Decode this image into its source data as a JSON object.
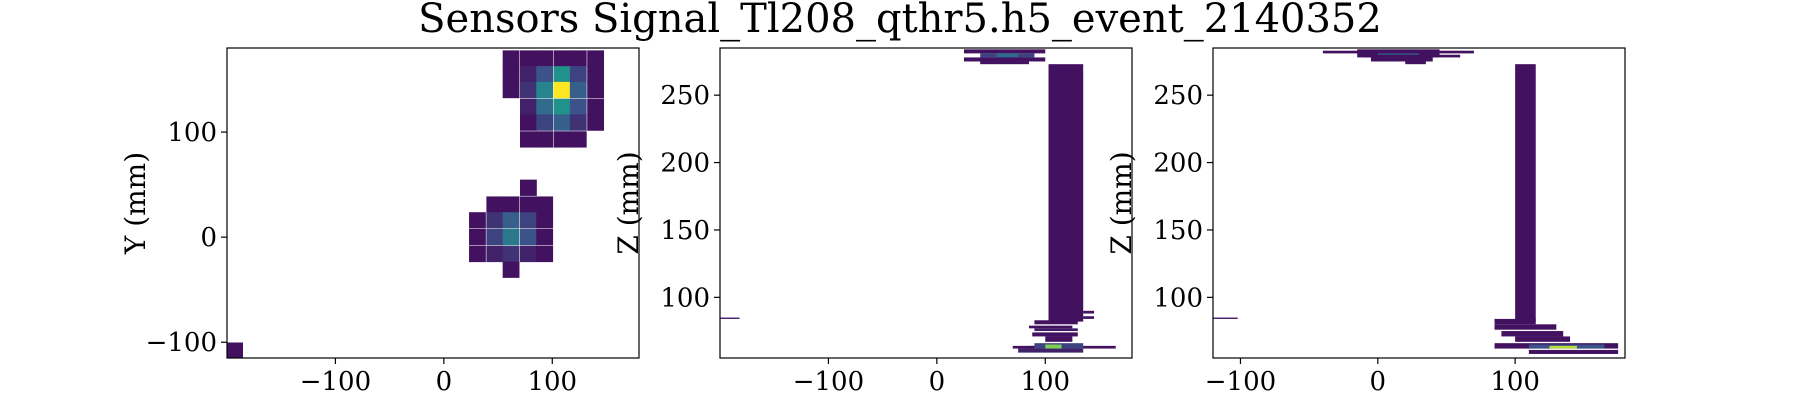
{
  "figure": {
    "suptitle": "Sensors Signal_Tl208_qthr5.h5_event_2140352"
  },
  "colors": {
    "low": "#440154",
    "mid1": "#3b528b",
    "mid2": "#21918c",
    "mid3": "#5ec962",
    "high": "#fde725"
  },
  "chart_data": [
    {
      "type": "heatmap",
      "title": "",
      "xlabel": "",
      "ylabel": "Y (mm)",
      "xlim": [
        -200,
        180
      ],
      "ylim": [
        -115,
        180
      ],
      "xticks": [
        -100,
        0,
        100
      ],
      "yticks": [
        -100,
        0,
        100
      ],
      "xtick_labels": [
        "−100",
        "0",
        "100"
      ],
      "ytick_labels": [
        "−100",
        "0",
        "100"
      ],
      "cell_size": [
        15.5,
        15.5
      ],
      "cells": [
        {
          "x": 62,
          "y": 170,
          "v": 0.05
        },
        {
          "x": 78,
          "y": 170,
          "v": 0.05
        },
        {
          "x": 93,
          "y": 170,
          "v": 0.05
        },
        {
          "x": 109,
          "y": 170,
          "v": 0.05
        },
        {
          "x": 124,
          "y": 170,
          "v": 0.05
        },
        {
          "x": 140,
          "y": 170,
          "v": 0.05
        },
        {
          "x": 62,
          "y": 155,
          "v": 0.05
        },
        {
          "x": 78,
          "y": 155,
          "v": 0.1
        },
        {
          "x": 93,
          "y": 155,
          "v": 0.25
        },
        {
          "x": 109,
          "y": 155,
          "v": 0.5
        },
        {
          "x": 124,
          "y": 155,
          "v": 0.2
        },
        {
          "x": 140,
          "y": 155,
          "v": 0.05
        },
        {
          "x": 62,
          "y": 140,
          "v": 0.05
        },
        {
          "x": 78,
          "y": 140,
          "v": 0.15
        },
        {
          "x": 93,
          "y": 140,
          "v": 0.45
        },
        {
          "x": 109,
          "y": 140,
          "v": 1.0
        },
        {
          "x": 124,
          "y": 140,
          "v": 0.3
        },
        {
          "x": 140,
          "y": 140,
          "v": 0.05
        },
        {
          "x": 78,
          "y": 124,
          "v": 0.1
        },
        {
          "x": 93,
          "y": 124,
          "v": 0.35
        },
        {
          "x": 109,
          "y": 124,
          "v": 0.5
        },
        {
          "x": 124,
          "y": 124,
          "v": 0.25
        },
        {
          "x": 140,
          "y": 124,
          "v": 0.05
        },
        {
          "x": 78,
          "y": 109,
          "v": 0.05
        },
        {
          "x": 93,
          "y": 109,
          "v": 0.2
        },
        {
          "x": 109,
          "y": 109,
          "v": 0.3
        },
        {
          "x": 124,
          "y": 109,
          "v": 0.15
        },
        {
          "x": 140,
          "y": 109,
          "v": 0.05
        },
        {
          "x": 78,
          "y": 93,
          "v": 0.05
        },
        {
          "x": 93,
          "y": 93,
          "v": 0.05
        },
        {
          "x": 109,
          "y": 93,
          "v": 0.05
        },
        {
          "x": 124,
          "y": 93,
          "v": 0.05
        },
        {
          "x": 78,
          "y": 47,
          "v": 0.05
        },
        {
          "x": 47,
          "y": 31,
          "v": 0.05
        },
        {
          "x": 62,
          "y": 31,
          "v": 0.05
        },
        {
          "x": 78,
          "y": 31,
          "v": 0.05
        },
        {
          "x": 93,
          "y": 31,
          "v": 0.05
        },
        {
          "x": 31,
          "y": 16,
          "v": 0.05
        },
        {
          "x": 47,
          "y": 16,
          "v": 0.15
        },
        {
          "x": 62,
          "y": 16,
          "v": 0.3
        },
        {
          "x": 78,
          "y": 16,
          "v": 0.2
        },
        {
          "x": 93,
          "y": 16,
          "v": 0.05
        },
        {
          "x": 31,
          "y": 0,
          "v": 0.05
        },
        {
          "x": 47,
          "y": 0,
          "v": 0.2
        },
        {
          "x": 62,
          "y": 0,
          "v": 0.4
        },
        {
          "x": 78,
          "y": 0,
          "v": 0.25
        },
        {
          "x": 93,
          "y": 0,
          "v": 0.05
        },
        {
          "x": 31,
          "y": -16,
          "v": 0.05
        },
        {
          "x": 47,
          "y": -16,
          "v": 0.1
        },
        {
          "x": 62,
          "y": -16,
          "v": 0.15
        },
        {
          "x": 78,
          "y": -16,
          "v": 0.1
        },
        {
          "x": 93,
          "y": -16,
          "v": 0.05
        },
        {
          "x": 62,
          "y": -31,
          "v": 0.05
        },
        {
          "x": -193,
          "y": -108,
          "v": 0.05
        }
      ]
    },
    {
      "type": "heatmap",
      "title": "",
      "xlabel": "",
      "ylabel": "Z (mm)",
      "xlim": [
        -200,
        180
      ],
      "ylim": [
        55,
        285
      ],
      "xticks": [
        -100,
        0,
        100
      ],
      "yticks": [
        100,
        150,
        200,
        250
      ],
      "xtick_labels": [
        "−100",
        "0",
        "100"
      ],
      "ytick_labels": [
        "100",
        "150",
        "200",
        "250"
      ],
      "cells": [
        {
          "x0": 25,
          "x1": 100,
          "y0": 281,
          "y1": 284,
          "v": 0.05
        },
        {
          "x0": 40,
          "x1": 90,
          "y0": 278,
          "y1": 281,
          "v": 0.2
        },
        {
          "x0": 55,
          "x1": 75,
          "y0": 278,
          "y1": 281,
          "v": 0.35
        },
        {
          "x0": 25,
          "x1": 100,
          "y0": 275,
          "y1": 278,
          "v": 0.05
        },
        {
          "x0": 40,
          "x1": 85,
          "y0": 273,
          "y1": 275,
          "v": 0.05
        },
        {
          "x0": 103,
          "x1": 135,
          "y0": 82,
          "y1": 273,
          "v": 0.05
        },
        {
          "x0": 135,
          "x1": 145,
          "y0": 88,
          "y1": 90,
          "v": 0.05
        },
        {
          "x0": 135,
          "x1": 145,
          "y0": 84,
          "y1": 86,
          "v": 0.05
        },
        {
          "x0": 90,
          "x1": 130,
          "y0": 80,
          "y1": 83,
          "v": 0.05
        },
        {
          "x0": 85,
          "x1": 125,
          "y0": 77,
          "y1": 79,
          "v": 0.05
        },
        {
          "x0": 90,
          "x1": 130,
          "y0": 75,
          "y1": 77,
          "v": 0.08
        },
        {
          "x0": 88,
          "x1": 130,
          "y0": 71,
          "y1": 74,
          "v": 0.05
        },
        {
          "x0": 100,
          "x1": 125,
          "y0": 67,
          "y1": 71,
          "v": 0.05
        },
        {
          "x0": 70,
          "x1": 90,
          "y0": 62,
          "y1": 64,
          "v": 0.05
        },
        {
          "x0": 85,
          "x1": 165,
          "y0": 62,
          "y1": 64,
          "v": 0.05
        },
        {
          "x0": 90,
          "x1": 135,
          "y0": 62,
          "y1": 66,
          "v": 0.2
        },
        {
          "x0": 100,
          "x1": 115,
          "y0": 62,
          "y1": 65,
          "v": 0.8
        },
        {
          "x0": 75,
          "x1": 135,
          "y0": 59,
          "y1": 62,
          "v": 0.1
        },
        {
          "x0": -200,
          "x1": -182,
          "y0": 84,
          "y1": 85,
          "v": 0.05
        }
      ]
    },
    {
      "type": "heatmap",
      "title": "",
      "xlabel": "",
      "ylabel": "Z (mm)",
      "xlim": [
        -120,
        180
      ],
      "ylim": [
        55,
        285
      ],
      "xticks": [
        -100,
        0,
        100
      ],
      "yticks": [
        100,
        150,
        200,
        250
      ],
      "xtick_labels": [
        "−100",
        "0",
        "100"
      ],
      "ytick_labels": [
        "100",
        "150",
        "200",
        "250"
      ],
      "cells": [
        {
          "x0": -40,
          "x1": 70,
          "y0": 281,
          "y1": 283,
          "v": 0.05
        },
        {
          "x0": -15,
          "x1": 45,
          "y0": 278,
          "y1": 284,
          "v": 0.05
        },
        {
          "x0": 0,
          "x1": 30,
          "y0": 278,
          "y1": 281,
          "v": 0.3
        },
        {
          "x0": -10,
          "x1": 60,
          "y0": 278,
          "y1": 280,
          "v": 0.05
        },
        {
          "x0": -5,
          "x1": 40,
          "y0": 275,
          "y1": 278,
          "v": 0.05
        },
        {
          "x0": 20,
          "x1": 35,
          "y0": 273,
          "y1": 275,
          "v": 0.05
        },
        {
          "x0": 100,
          "x1": 115,
          "y0": 82,
          "y1": 273,
          "v": 0.05
        },
        {
          "x0": 85,
          "x1": 115,
          "y0": 80,
          "y1": 84,
          "v": 0.05
        },
        {
          "x0": 85,
          "x1": 130,
          "y0": 76,
          "y1": 80,
          "v": 0.05
        },
        {
          "x0": 90,
          "x1": 135,
          "y0": 71,
          "y1": 75,
          "v": 0.05
        },
        {
          "x0": 100,
          "x1": 140,
          "y0": 67,
          "y1": 71,
          "v": 0.05
        },
        {
          "x0": 85,
          "x1": 175,
          "y0": 62,
          "y1": 66,
          "v": 0.05
        },
        {
          "x0": 110,
          "x1": 165,
          "y0": 62,
          "y1": 65,
          "v": 0.25
        },
        {
          "x0": 125,
          "x1": 145,
          "y0": 62,
          "y1": 64,
          "v": 0.9
        },
        {
          "x0": 110,
          "x1": 175,
          "y0": 58,
          "y1": 61,
          "v": 0.05
        },
        {
          "x0": -120,
          "x1": -102,
          "y0": 84,
          "y1": 85,
          "v": 0.05
        }
      ]
    }
  ]
}
